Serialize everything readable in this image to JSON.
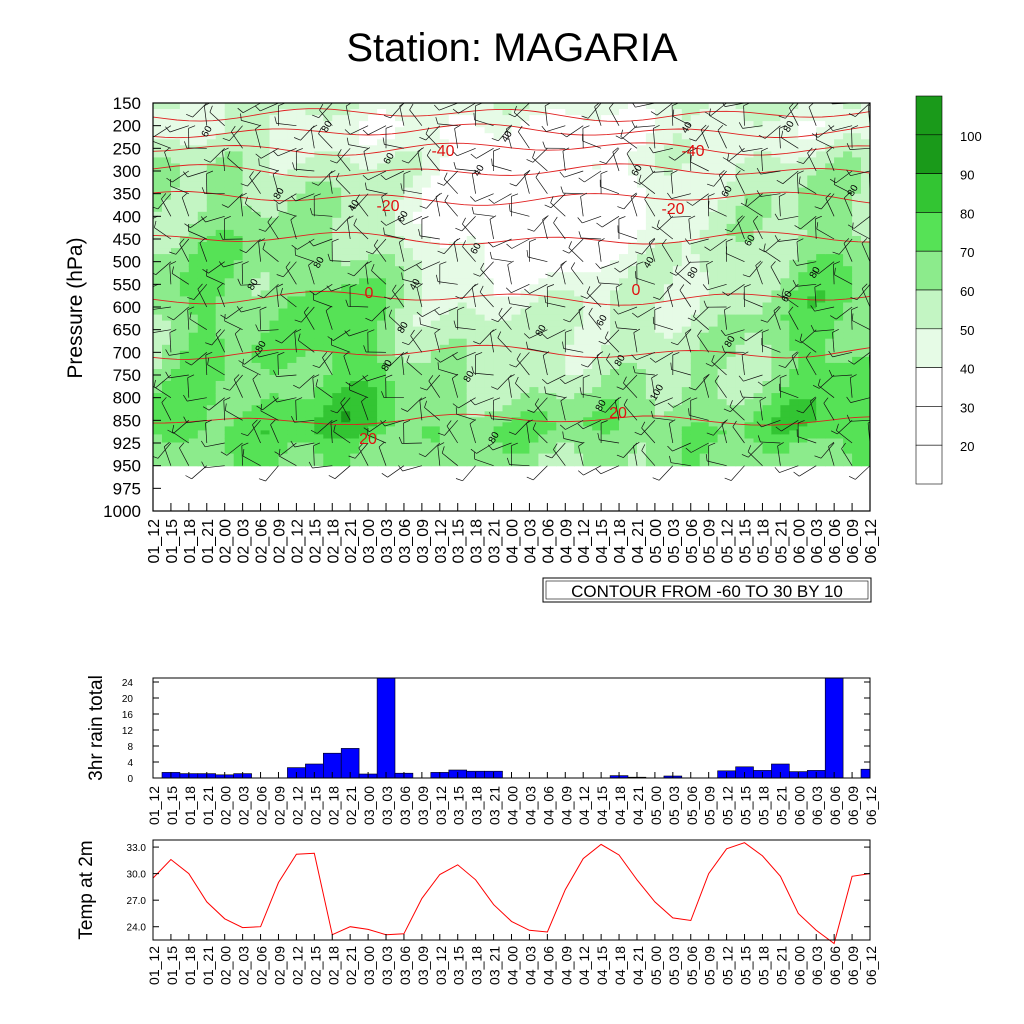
{
  "title": "Station: MAGARIA",
  "time_labels": [
    "01_12",
    "01_15",
    "01_18",
    "01_21",
    "02_00",
    "02_03",
    "02_06",
    "02_09",
    "02_12",
    "02_15",
    "02_18",
    "02_21",
    "03_00",
    "03_03",
    "03_06",
    "03_09",
    "03_12",
    "03_15",
    "03_18",
    "03_21",
    "04_00",
    "04_03",
    "04_06",
    "04_09",
    "04_12",
    "04_15",
    "04_18",
    "04_21",
    "05_00",
    "05_03",
    "05_06",
    "05_09",
    "05_12",
    "05_15",
    "05_18",
    "05_21",
    "06_00",
    "06_03",
    "06_06",
    "06_09",
    "06_12"
  ],
  "chart_data": [
    {
      "type": "heatmap",
      "name": "relative-humidity-cross-section",
      "ylabel": "Pressure (hPa)",
      "y_ticks": [
        150,
        200,
        250,
        300,
        350,
        400,
        450,
        500,
        550,
        600,
        650,
        700,
        750,
        800,
        850,
        925,
        950,
        975,
        1000
      ],
      "y_inverted": true,
      "contour_note": "CONTOUR FROM -60 TO 30 BY 10",
      "colorbar": {
        "labels": [
          "20",
          "30",
          "40",
          "50",
          "60",
          "70",
          "80",
          "90",
          "100"
        ],
        "colors": [
          "#ffffff",
          "#ffffff",
          "#ffffff",
          "#e6fbe6",
          "#c3f5c3",
          "#8ceb8c",
          "#56e256",
          "#33c533",
          "#1a9a1a"
        ]
      },
      "red_contour_labels": [
        "-40",
        "-40",
        "-20",
        "-20",
        "0",
        "0",
        "20",
        "20"
      ],
      "rh_contour_labels": [
        "60",
        "80",
        "40",
        "40",
        "60",
        "40",
        "60",
        "80",
        "60",
        "80",
        "80",
        "40",
        "60",
        "60",
        "60",
        "80",
        "40",
        "80",
        "80",
        "80",
        "40",
        "60",
        "60",
        "80",
        "80",
        "80",
        "80",
        "80",
        "80",
        "80",
        "100",
        "80",
        "80"
      ]
    },
    {
      "type": "bar",
      "name": "rain",
      "ylabel": "3hr rain total",
      "ylim": [
        0,
        25
      ],
      "y_ticks": [
        "0",
        "4",
        "8",
        "12",
        "16",
        "20",
        "24"
      ],
      "bar_color": "#0000ff",
      "values": [
        0,
        1.4,
        1.1,
        1.1,
        0.8,
        1.1,
        0,
        0,
        2.6,
        3.5,
        6.2,
        7.4,
        1.0,
        25,
        1.2,
        0,
        1.4,
        2.0,
        1.7,
        1.7,
        0,
        0,
        0,
        0,
        0,
        0,
        0.6,
        0.2,
        0,
        0.5,
        0,
        0,
        1.8,
        2.8,
        1.9,
        3.5,
        1.6,
        1.9,
        25,
        0,
        2.2
      ]
    },
    {
      "type": "line",
      "name": "temperature",
      "ylabel": "Temp at 2m",
      "ylim": [
        22.5,
        33.8
      ],
      "y_ticks": [
        "24.0",
        "27.0",
        "30.0",
        "33.0"
      ],
      "line_color": "#ff0000",
      "values": [
        29.5,
        31.6,
        30.0,
        26.8,
        24.9,
        23.9,
        24.0,
        29.0,
        32.2,
        32.3,
        23.1,
        24.0,
        23.7,
        23.1,
        23.2,
        27.2,
        29.9,
        31.0,
        29.3,
        26.5,
        24.6,
        23.6,
        23.4,
        28.2,
        31.7,
        33.3,
        32.1,
        29.3,
        26.8,
        25.0,
        24.7,
        30.0,
        32.8,
        33.5,
        32.0,
        29.7,
        25.5,
        23.6,
        22.1,
        29.7,
        30.0
      ]
    }
  ]
}
